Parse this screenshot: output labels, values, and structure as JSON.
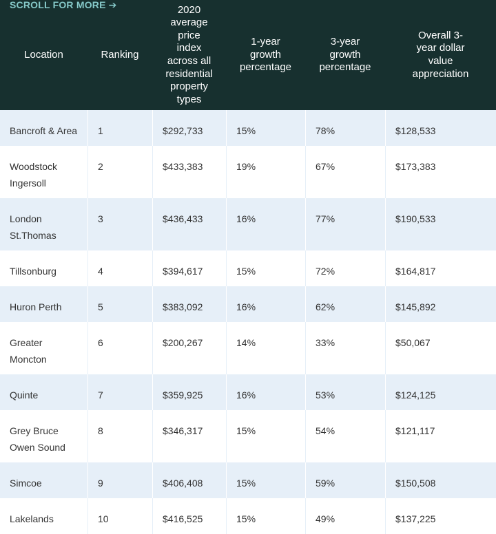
{
  "scroll_hint": "SCROLL FOR MORE",
  "scroll_arrow": "➔",
  "columns": [
    {
      "lines": [
        "Location"
      ]
    },
    {
      "lines": [
        "Ranking"
      ]
    },
    {
      "lines": [
        "2020",
        "average",
        "price",
        "index",
        "across all",
        "residential",
        "property",
        "types"
      ]
    },
    {
      "lines": [
        "1-year",
        "growth",
        "percentage"
      ]
    },
    {
      "lines": [
        "3-year",
        "growth",
        "percentage"
      ]
    },
    {
      "lines": [
        "Overall 3-",
        "year dollar",
        "value",
        "appreciation"
      ]
    }
  ],
  "rows": [
    {
      "location": [
        "Bancroft & Area"
      ],
      "ranking": "1",
      "price": "$292,733",
      "growth1": "15%",
      "growth3": "78%",
      "appreciation": "$128,533"
    },
    {
      "location": [
        "Woodstock",
        "Ingersoll"
      ],
      "ranking": "2",
      "price": "$433,383",
      "growth1": "19%",
      "growth3": "67%",
      "appreciation": "$173,383"
    },
    {
      "location": [
        "London",
        "St.Thomas"
      ],
      "ranking": "3",
      "price": "$436,433",
      "growth1": "16%",
      "growth3": "77%",
      "appreciation": "$190,533"
    },
    {
      "location": [
        "Tillsonburg"
      ],
      "ranking": "4",
      "price": "$394,617",
      "growth1": "15%",
      "growth3": "72%",
      "appreciation": "$164,817"
    },
    {
      "location": [
        "Huron Perth"
      ],
      "ranking": "5",
      "price": "$383,092",
      "growth1": "16%",
      "growth3": "62%",
      "appreciation": "$145,892"
    },
    {
      "location": [
        "Greater",
        "Moncton"
      ],
      "ranking": "6",
      "price": "$200,267",
      "growth1": "14%",
      "growth3": "33%",
      "appreciation": "$50,067"
    },
    {
      "location": [
        "Quinte"
      ],
      "ranking": "7",
      "price": "$359,925",
      "growth1": "16%",
      "growth3": "53%",
      "appreciation": "$124,125"
    },
    {
      "location": [
        "Grey Bruce",
        "Owen Sound"
      ],
      "ranking": "8",
      "price": "$346,317",
      "growth1": "15%",
      "growth3": "54%",
      "appreciation": "$121,117"
    },
    {
      "location": [
        "Simcoe"
      ],
      "ranking": "9",
      "price": "$406,408",
      "growth1": "15%",
      "growth3": "59%",
      "appreciation": "$150,508"
    },
    {
      "location": [
        "Lakelands"
      ],
      "ranking": "10",
      "price": "$416,525",
      "growth1": "15%",
      "growth3": "49%",
      "appreciation": "$137,225"
    }
  ],
  "colors": {
    "header_bg": "#17302f",
    "header_text": "#ffffff",
    "scroll_hint": "#86c9c9",
    "row_alt_bg": "#e6eff8",
    "row_bg": "#ffffff",
    "cell_text": "#333333"
  }
}
